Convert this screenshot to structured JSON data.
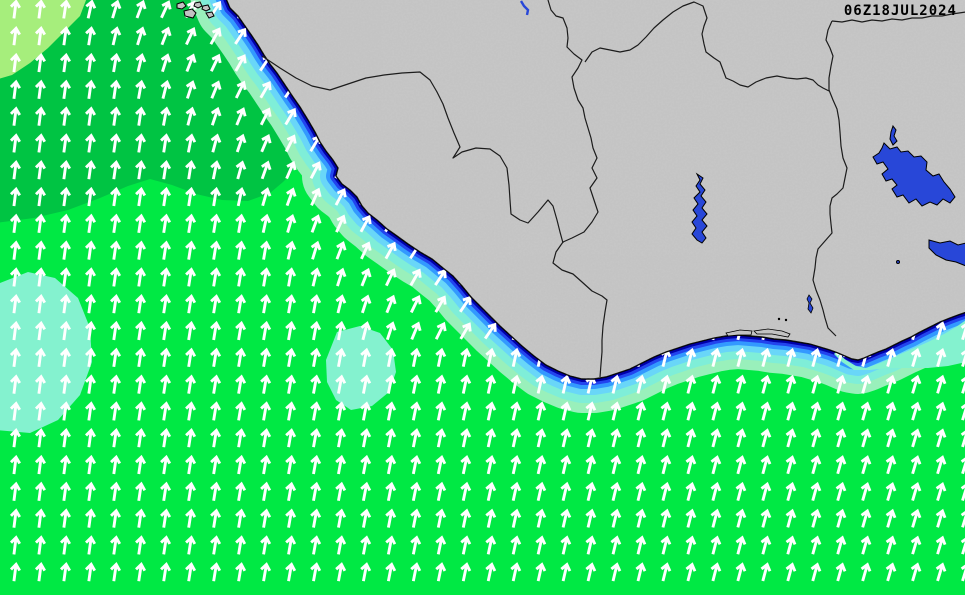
{
  "header": {
    "timestamp": "06Z18JUL2024"
  },
  "map": {
    "kind": "wave-height-and-direction-forecast",
    "arrow_field": {
      "symbol": "wave-direction-arrow",
      "direction": "NNE",
      "color": "#ffffff",
      "grid_dx": 25,
      "grid_dy": 26.8,
      "base_angle_deg": 7,
      "coast_extra_angle_deg": 26
    },
    "water_bodies": [
      "lake-kossou",
      "lake-volta"
    ],
    "palette": {
      "ocean_green": "#00e944",
      "ocean_dark_green": "#00c443",
      "ocean_pale_lime": "#a6ee7c",
      "ocean_aqua_patch": "#84f2cf",
      "band_mint": "#99f0bb",
      "band_aqua": "#7feed8",
      "band_light_blue": "#69d6f8",
      "band_azure": "#3399ff",
      "band_blue": "#2244ee",
      "band_navy": "#0000a8",
      "land": "#c2c2c2",
      "coast_outline": "#000000",
      "country_border": "#1c1c1c",
      "lake": "#2847d8",
      "arrow": "#ffffff",
      "timestamp_text": "#000000"
    }
  }
}
